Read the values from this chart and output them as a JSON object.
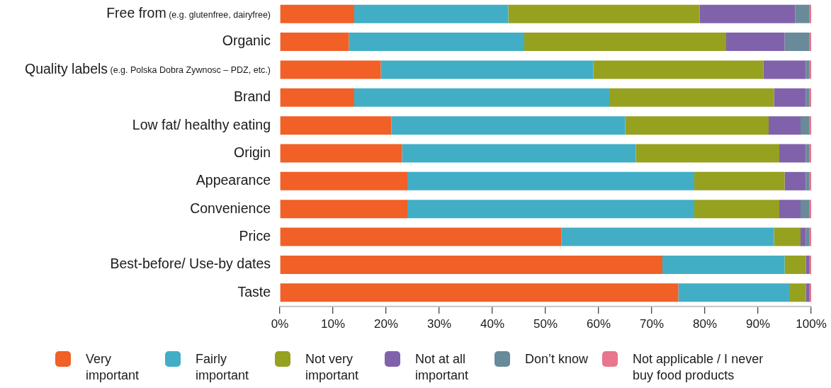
{
  "chart_data": {
    "type": "bar",
    "orientation": "horizontal",
    "stacked": true,
    "categories": [
      "Free from (e.g. glutenfree, dairyfree)",
      "Organic",
      "Quality labels (e.g. Polska Dobra Zywnosc – PDZ, etc.)",
      "Brand",
      "Low fat/ healthy eating",
      "Origin",
      "Appearance",
      "Convenience",
      "Price",
      "Best-before/ Use-by dates",
      "Taste"
    ],
    "series": [
      {
        "name": "Very important",
        "color": "#f06027",
        "values": [
          14,
          13,
          19,
          14,
          21,
          23,
          24,
          24,
          53,
          72,
          75
        ]
      },
      {
        "name": "Fairly important",
        "color": "#42aec6",
        "values": [
          29,
          33,
          40,
          48,
          44,
          44,
          54,
          54,
          40,
          23,
          21
        ]
      },
      {
        "name": "Not very important",
        "color": "#96a120",
        "values": [
          36,
          38,
          32,
          31,
          27,
          27,
          17,
          16,
          5,
          4,
          3
        ]
      },
      {
        "name": "Not at all important",
        "color": "#8062aa",
        "values": [
          18,
          11,
          8,
          6,
          6,
          5,
          4,
          4,
          1,
          0.7,
          0.7
        ]
      },
      {
        "name": "Don’t know",
        "color": "#688a99",
        "values": [
          2.7,
          4.7,
          0.7,
          0.7,
          1.7,
          0.7,
          0.7,
          1.7,
          0.7,
          0,
          0
        ]
      },
      {
        "name": "Not applicable / I never buy food products",
        "color": "#e8768f",
        "values": [
          0.3,
          0.3,
          0.3,
          0.3,
          0.3,
          0.3,
          0.3,
          0.3,
          0.3,
          0.3,
          0.3
        ]
      }
    ],
    "xlim": [
      0,
      100
    ],
    "xticks": [
      {
        "value": 0,
        "label": "0%"
      },
      {
        "value": 10,
        "label": "10%"
      },
      {
        "value": 20,
        "label": "20%"
      },
      {
        "value": 30,
        "label": "30%"
      },
      {
        "value": 40,
        "label": "40%"
      },
      {
        "value": 50,
        "label": "50%"
      },
      {
        "value": 60,
        "label": "60%"
      },
      {
        "value": 70,
        "label": "70%"
      },
      {
        "value": 80,
        "label": "80%"
      },
      {
        "value": 90,
        "label": "90%"
      },
      {
        "value": 100,
        "label": "100%"
      }
    ],
    "grid": false,
    "legend": "bottom"
  }
}
